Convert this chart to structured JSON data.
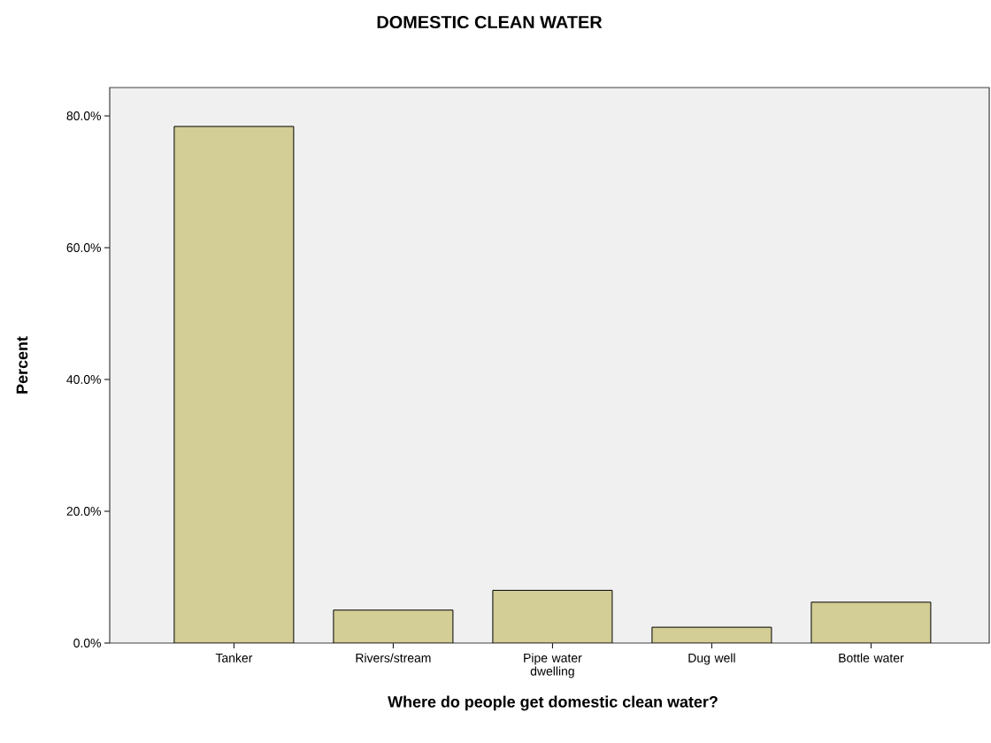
{
  "chart_data": {
    "type": "bar",
    "title": "DOMESTIC CLEAN WATER",
    "xlabel": "Where do people get domestic clean water?",
    "ylabel": "Percent",
    "categories": [
      "Tanker",
      "Rivers/stream",
      "Pipe water dwelling",
      "Dug well",
      "Bottle water"
    ],
    "values": [
      78.4,
      5.0,
      8.0,
      2.4,
      6.2
    ],
    "color": "#d3cd96",
    "ylim": [
      0,
      84.3
    ],
    "yticks": [
      {
        "value": 0,
        "label": "0.0%"
      },
      {
        "value": 20,
        "label": "20.0%"
      },
      {
        "value": 40,
        "label": "40.0%"
      },
      {
        "value": 60,
        "label": "60.0%"
      },
      {
        "value": 80,
        "label": "80.0%"
      }
    ]
  }
}
